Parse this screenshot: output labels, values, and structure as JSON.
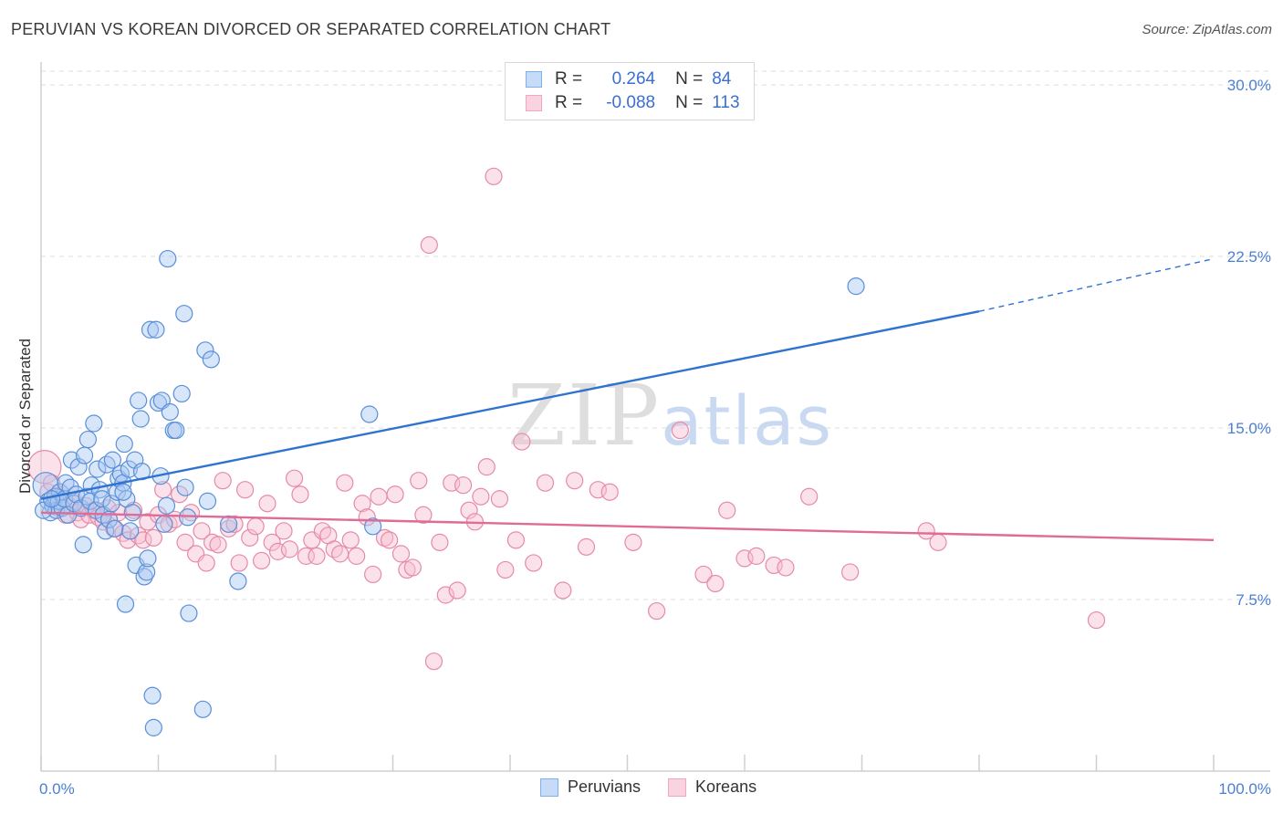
{
  "title": "PERUVIAN VS KOREAN DIVORCED OR SEPARATED CORRELATION CHART",
  "source": "Source: ZipAtlas.com",
  "watermark": {
    "zip": "ZIP",
    "atlas": "atlas"
  },
  "legend": {
    "rows": [
      {
        "r_label": "R =",
        "r_value": "0.264",
        "n_label": "N =",
        "n_value": "84",
        "color": "#7fb0ee"
      },
      {
        "r_label": "R =",
        "r_value": "-0.088",
        "n_label": "N =",
        "n_value": "113",
        "color": "#f2a6bf"
      }
    ]
  },
  "bottom_legend": [
    {
      "label": "Peruvians",
      "color": "#7fb0ee"
    },
    {
      "label": "Koreans",
      "color": "#f2a6bf"
    }
  ],
  "colors": {
    "blue_fill": "#a9c8f2",
    "blue_stroke": "#5a8fd8",
    "blue_line": "#2f73d2",
    "pink_fill": "#f6bfd0",
    "pink_stroke": "#e68aa8",
    "pink_line": "#e06b95",
    "grid": "#dddddd",
    "axis_text": "#4a7fd4"
  },
  "chart_data": {
    "type": "scatter",
    "title": "PERUVIAN VS KOREAN DIVORCED OR SEPARATED CORRELATION CHART",
    "xlabel": "",
    "ylabel": "Divorced or Separated",
    "xlim": [
      0,
      100
    ],
    "ylim": [
      0,
      31
    ],
    "x_tick_labels": [
      {
        "value": 0,
        "label": "0.0%"
      },
      {
        "value": 100,
        "label": "100.0%"
      }
    ],
    "y_ticks": [
      7.5,
      15.0,
      22.5,
      30.0
    ],
    "y_tick_labels": [
      "7.5%",
      "15.0%",
      "22.5%",
      "30.0%"
    ],
    "grid": true,
    "series": [
      {
        "name": "Peruvians",
        "r": 0.264,
        "n": 84,
        "trend": {
          "x0": 0,
          "y0": 11.9,
          "x1": 80,
          "y1": 20.1,
          "dashed_to_x": 100,
          "dashed_to_y": 22.4
        },
        "points": [
          [
            0.4,
            12.5
          ],
          [
            0.6,
            11.8
          ],
          [
            0.8,
            11.3
          ],
          [
            1.0,
            11.6
          ],
          [
            1.2,
            12.0
          ],
          [
            1.3,
            11.4
          ],
          [
            1.5,
            11.8
          ],
          [
            1.6,
            12.2
          ],
          [
            1.8,
            11.5
          ],
          [
            2.0,
            11.9
          ],
          [
            2.1,
            12.6
          ],
          [
            2.3,
            11.2
          ],
          [
            2.5,
            12.4
          ],
          [
            2.6,
            13.6
          ],
          [
            2.8,
            11.7
          ],
          [
            3.0,
            12.1
          ],
          [
            3.2,
            13.3
          ],
          [
            3.4,
            11.5
          ],
          [
            3.6,
            9.9
          ],
          [
            3.7,
            13.8
          ],
          [
            3.9,
            12.0
          ],
          [
            4.0,
            14.5
          ],
          [
            4.2,
            11.8
          ],
          [
            4.3,
            12.5
          ],
          [
            4.5,
            15.2
          ],
          [
            4.7,
            11.4
          ],
          [
            4.8,
            13.2
          ],
          [
            5.0,
            12.3
          ],
          [
            5.2,
            11.9
          ],
          [
            5.3,
            11.2
          ],
          [
            5.5,
            10.5
          ],
          [
            5.6,
            13.4
          ],
          [
            5.8,
            11.0
          ],
          [
            6.0,
            11.7
          ],
          [
            6.1,
            13.6
          ],
          [
            6.3,
            10.6
          ],
          [
            6.5,
            12.2
          ],
          [
            6.6,
            12.8
          ],
          [
            6.8,
            13.0
          ],
          [
            7.0,
            12.6
          ],
          [
            7.1,
            14.3
          ],
          [
            7.3,
            11.9
          ],
          [
            7.5,
            13.2
          ],
          [
            7.6,
            10.5
          ],
          [
            7.8,
            11.3
          ],
          [
            8.0,
            13.6
          ],
          [
            8.1,
            9.0
          ],
          [
            8.3,
            16.2
          ],
          [
            8.5,
            15.4
          ],
          [
            8.6,
            13.1
          ],
          [
            8.8,
            8.5
          ],
          [
            9.0,
            8.7
          ],
          [
            9.1,
            9.3
          ],
          [
            9.3,
            19.3
          ],
          [
            9.5,
            3.3
          ],
          [
            9.6,
            1.9
          ],
          [
            9.8,
            19.3
          ],
          [
            7.0,
            12.2
          ],
          [
            7.2,
            7.3
          ],
          [
            10.0,
            16.1
          ],
          [
            10.2,
            12.9
          ],
          [
            10.3,
            16.2
          ],
          [
            10.5,
            10.8
          ],
          [
            10.7,
            11.6
          ],
          [
            10.8,
            22.4
          ],
          [
            11.0,
            15.7
          ],
          [
            11.3,
            14.9
          ],
          [
            11.5,
            14.9
          ],
          [
            12.0,
            16.5
          ],
          [
            12.2,
            20.0
          ],
          [
            12.3,
            12.4
          ],
          [
            12.5,
            11.1
          ],
          [
            12.6,
            6.9
          ],
          [
            13.8,
            2.7
          ],
          [
            14.0,
            18.4
          ],
          [
            14.2,
            11.8
          ],
          [
            14.5,
            18.0
          ],
          [
            16.0,
            10.8
          ],
          [
            16.8,
            8.3
          ],
          [
            28.0,
            15.6
          ],
          [
            28.3,
            10.7
          ],
          [
            69.5,
            21.2
          ],
          [
            0.2,
            11.4
          ],
          [
            0.9,
            11.9
          ]
        ]
      },
      {
        "name": "Koreans",
        "r": -0.088,
        "n": 113,
        "trend": {
          "x0": 0,
          "y0": 11.3,
          "x1": 100,
          "y1": 10.1
        },
        "points": [
          [
            0.3,
            13.3
          ],
          [
            0.6,
            12.2
          ],
          [
            0.9,
            12.6
          ],
          [
            1.2,
            11.9
          ],
          [
            1.5,
            11.5
          ],
          [
            1.8,
            12.1
          ],
          [
            2.1,
            11.2
          ],
          [
            2.4,
            11.6
          ],
          [
            2.8,
            11.8
          ],
          [
            3.1,
            11.3
          ],
          [
            3.4,
            11.0
          ],
          [
            3.8,
            11.6
          ],
          [
            4.1,
            11.2
          ],
          [
            4.5,
            11.4
          ],
          [
            4.9,
            11.1
          ],
          [
            5.3,
            10.9
          ],
          [
            5.7,
            11.5
          ],
          [
            6.2,
            10.6
          ],
          [
            6.6,
            11.3
          ],
          [
            7.0,
            10.4
          ],
          [
            7.4,
            10.1
          ],
          [
            7.9,
            11.4
          ],
          [
            8.3,
            10.3
          ],
          [
            8.7,
            10.1
          ],
          [
            9.1,
            10.9
          ],
          [
            9.6,
            10.2
          ],
          [
            10.0,
            11.2
          ],
          [
            10.4,
            12.3
          ],
          [
            10.9,
            10.8
          ],
          [
            11.4,
            11.0
          ],
          [
            11.8,
            12.1
          ],
          [
            12.3,
            10.0
          ],
          [
            12.8,
            11.3
          ],
          [
            13.2,
            9.5
          ],
          [
            13.7,
            10.5
          ],
          [
            14.1,
            9.1
          ],
          [
            14.6,
            10.0
          ],
          [
            15.1,
            9.9
          ],
          [
            15.5,
            12.7
          ],
          [
            16.0,
            10.6
          ],
          [
            16.5,
            10.8
          ],
          [
            16.9,
            9.1
          ],
          [
            17.4,
            12.3
          ],
          [
            17.8,
            10.2
          ],
          [
            18.3,
            10.7
          ],
          [
            18.8,
            9.2
          ],
          [
            19.3,
            11.7
          ],
          [
            19.7,
            10.0
          ],
          [
            20.2,
            9.6
          ],
          [
            20.7,
            10.5
          ],
          [
            21.2,
            9.7
          ],
          [
            21.6,
            12.8
          ],
          [
            22.1,
            12.1
          ],
          [
            22.6,
            9.4
          ],
          [
            23.1,
            10.1
          ],
          [
            23.5,
            9.4
          ],
          [
            24.0,
            10.5
          ],
          [
            24.5,
            10.3
          ],
          [
            25.0,
            9.7
          ],
          [
            25.5,
            9.5
          ],
          [
            25.9,
            12.6
          ],
          [
            26.4,
            10.1
          ],
          [
            26.9,
            9.4
          ],
          [
            27.4,
            11.7
          ],
          [
            27.8,
            11.1
          ],
          [
            28.3,
            8.6
          ],
          [
            28.8,
            12.0
          ],
          [
            29.3,
            10.2
          ],
          [
            29.7,
            10.1
          ],
          [
            30.2,
            12.1
          ],
          [
            30.7,
            9.5
          ],
          [
            31.2,
            8.8
          ],
          [
            31.7,
            8.9
          ],
          [
            32.2,
            12.7
          ],
          [
            32.6,
            11.2
          ],
          [
            33.1,
            23.0
          ],
          [
            33.5,
            4.8
          ],
          [
            34.0,
            10.0
          ],
          [
            34.5,
            7.7
          ],
          [
            35.0,
            12.6
          ],
          [
            35.5,
            7.9
          ],
          [
            36.0,
            12.5
          ],
          [
            36.5,
            11.4
          ],
          [
            37.0,
            10.9
          ],
          [
            37.5,
            12.0
          ],
          [
            38.0,
            13.3
          ],
          [
            38.6,
            26.0
          ],
          [
            39.1,
            11.9
          ],
          [
            39.6,
            8.8
          ],
          [
            40.5,
            10.1
          ],
          [
            41.0,
            14.4
          ],
          [
            42.0,
            9.1
          ],
          [
            43.0,
            12.6
          ],
          [
            44.5,
            7.9
          ],
          [
            45.5,
            12.7
          ],
          [
            46.5,
            9.8
          ],
          [
            47.5,
            12.3
          ],
          [
            48.5,
            12.2
          ],
          [
            50.5,
            10.0
          ],
          [
            52.5,
            7.0
          ],
          [
            54.5,
            14.9
          ],
          [
            56.5,
            8.6
          ],
          [
            57.5,
            8.2
          ],
          [
            58.5,
            11.4
          ],
          [
            60.0,
            9.3
          ],
          [
            61.0,
            9.4
          ],
          [
            62.5,
            9.0
          ],
          [
            63.5,
            8.9
          ],
          [
            65.5,
            12.0
          ],
          [
            69.0,
            8.7
          ],
          [
            75.5,
            10.5
          ],
          [
            76.5,
            10.0
          ],
          [
            90.0,
            6.6
          ]
        ]
      }
    ]
  }
}
